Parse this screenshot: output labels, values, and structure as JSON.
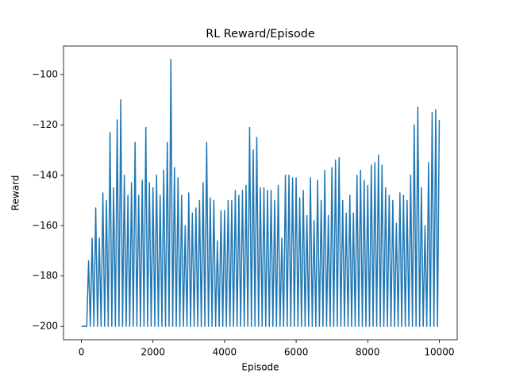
{
  "chart_data": {
    "type": "line",
    "title": "RL Reward/Episode",
    "xlabel": "Episode",
    "ylabel": "Reward",
    "x": [
      0,
      50,
      100,
      150,
      200,
      250,
      300,
      350,
      400,
      450,
      500,
      550,
      600,
      650,
      700,
      750,
      800,
      850,
      900,
      950,
      1000,
      1050,
      1100,
      1150,
      1200,
      1250,
      1300,
      1350,
      1400,
      1450,
      1500,
      1550,
      1600,
      1650,
      1700,
      1750,
      1800,
      1850,
      1900,
      1950,
      2000,
      2050,
      2100,
      2150,
      2200,
      2250,
      2300,
      2350,
      2400,
      2450,
      2500,
      2550,
      2600,
      2650,
      2700,
      2750,
      2800,
      2850,
      2900,
      2950,
      3000,
      3050,
      3100,
      3150,
      3200,
      3250,
      3300,
      3350,
      3400,
      3450,
      3500,
      3550,
      3600,
      3650,
      3700,
      3750,
      3800,
      3850,
      3900,
      3950,
      4000,
      4050,
      4100,
      4150,
      4200,
      4250,
      4300,
      4350,
      4400,
      4450,
      4500,
      4550,
      4600,
      4650,
      4700,
      4750,
      4800,
      4850,
      4900,
      4950,
      5000,
      5050,
      5100,
      5150,
      5200,
      5250,
      5300,
      5350,
      5400,
      5450,
      5500,
      5550,
      5600,
      5650,
      5700,
      5750,
      5800,
      5850,
      5900,
      5950,
      6000,
      6050,
      6100,
      6150,
      6200,
      6250,
      6300,
      6350,
      6400,
      6450,
      6500,
      6550,
      6600,
      6650,
      6700,
      6750,
      6800,
      6850,
      6900,
      6950,
      7000,
      7050,
      7100,
      7150,
      7200,
      7250,
      7300,
      7350,
      7400,
      7450,
      7500,
      7550,
      7600,
      7650,
      7700,
      7750,
      7800,
      7850,
      7900,
      7950,
      8000,
      8050,
      8100,
      8150,
      8200,
      8250,
      8300,
      8350,
      8400,
      8450,
      8500,
      8550,
      8600,
      8650,
      8700,
      8750,
      8800,
      8850,
      8900,
      8950,
      9000,
      9050,
      9100,
      9150,
      9200,
      9250,
      9300,
      9350,
      9400,
      9450,
      9500,
      9550,
      9600,
      9650,
      9700,
      9750,
      9800,
      9850,
      9900,
      9950,
      10000
    ],
    "series": [
      {
        "name": "Reward",
        "color": "#1f77b4",
        "values": [
          -200,
          -200,
          -200,
          -200,
          -174,
          -200,
          -165,
          -200,
          -153,
          -200,
          -165,
          -200,
          -147,
          -200,
          -150,
          -200,
          -123,
          -200,
          -145,
          -200,
          -118,
          -200,
          -110,
          -200,
          -140,
          -200,
          -148,
          -200,
          -143,
          -200,
          -127,
          -200,
          -148,
          -200,
          -142,
          -200,
          -121,
          -200,
          -143,
          -200,
          -145,
          -200,
          -140,
          -200,
          -148,
          -200,
          -138,
          -200,
          -127,
          -200,
          -94,
          -200,
          -137,
          -200,
          -141,
          -200,
          -148,
          -200,
          -160,
          -200,
          -147,
          -200,
          -155,
          -200,
          -153,
          -200,
          -150,
          -200,
          -143,
          -200,
          -127,
          -200,
          -149,
          -200,
          -150,
          -200,
          -166,
          -200,
          -154,
          -200,
          -154,
          -200,
          -150,
          -200,
          -150,
          -200,
          -146,
          -200,
          -148,
          -200,
          -146,
          -200,
          -144,
          -200,
          -121,
          -200,
          -130,
          -200,
          -125,
          -200,
          -145,
          -200,
          -145,
          -200,
          -146,
          -200,
          -146,
          -200,
          -150,
          -200,
          -144,
          -200,
          -165,
          -200,
          -140,
          -200,
          -140,
          -200,
          -141,
          -200,
          -141,
          -200,
          -149,
          -200,
          -146,
          -200,
          -156,
          -200,
          -141,
          -200,
          -158,
          -200,
          -142,
          -200,
          -150,
          -200,
          -138,
          -200,
          -156,
          -200,
          -137,
          -200,
          -134,
          -200,
          -133,
          -200,
          -150,
          -200,
          -155,
          -200,
          -148,
          -200,
          -155,
          -200,
          -140,
          -200,
          -138,
          -200,
          -142,
          -200,
          -144,
          -200,
          -136,
          -200,
          -135,
          -200,
          -132,
          -200,
          -136,
          -200,
          -145,
          -200,
          -148,
          -200,
          -150,
          -200,
          -159,
          -200,
          -147,
          -200,
          -148,
          -200,
          -150,
          -200,
          -140,
          -200,
          -120,
          -200,
          -113,
          -200,
          -145,
          -200,
          -160,
          -200,
          -135,
          -200,
          -115,
          -200,
          -114,
          -200,
          -118
        ]
      }
    ],
    "xlim": [
      -500,
      10500
    ],
    "ylim": [
      -205.3,
      -88.7
    ],
    "xticks": [
      0,
      2000,
      4000,
      6000,
      8000,
      10000
    ],
    "yticks": [
      {
        "value": -200,
        "label": "−200"
      },
      {
        "value": -180,
        "label": "−180"
      },
      {
        "value": -160,
        "label": "−160"
      },
      {
        "value": -140,
        "label": "−140"
      },
      {
        "value": -120,
        "label": "−120"
      },
      {
        "value": -100,
        "label": "−100"
      }
    ]
  }
}
